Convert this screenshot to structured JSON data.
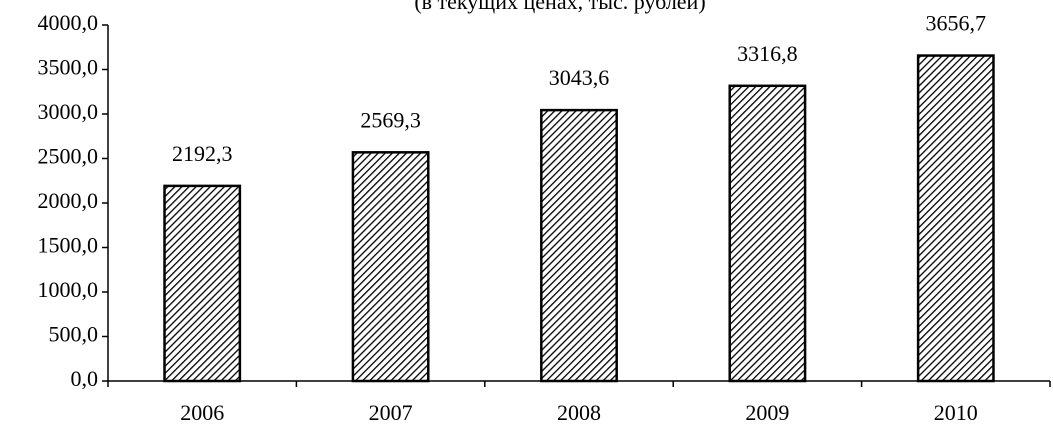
{
  "chart_data": {
    "type": "bar",
    "subtitle": "(в текущих ценах, тыс. рублей)",
    "categories": [
      "2006",
      "2007",
      "2008",
      "2009",
      "2010"
    ],
    "values": [
      2192.3,
      2569.3,
      3043.6,
      3316.8,
      3656.7
    ],
    "value_labels": [
      "2192,3",
      "2569,3",
      "3043,6",
      "3316,8",
      "3656,7"
    ],
    "color": "#000000",
    "ylim": [
      0,
      4000
    ],
    "yticks": [
      {
        "value": 0,
        "label": "0,0"
      },
      {
        "value": 500,
        "label": "500,0"
      },
      {
        "value": 1000,
        "label": "1000,0"
      },
      {
        "value": 1500,
        "label": "1500,0"
      },
      {
        "value": 2000,
        "label": "2000,0"
      },
      {
        "value": 2500,
        "label": "2500,0"
      },
      {
        "value": 3000,
        "label": "3000,0"
      },
      {
        "value": 3500,
        "label": "3500,0"
      },
      {
        "value": 4000,
        "label": "4000,0"
      }
    ],
    "grid": false
  }
}
